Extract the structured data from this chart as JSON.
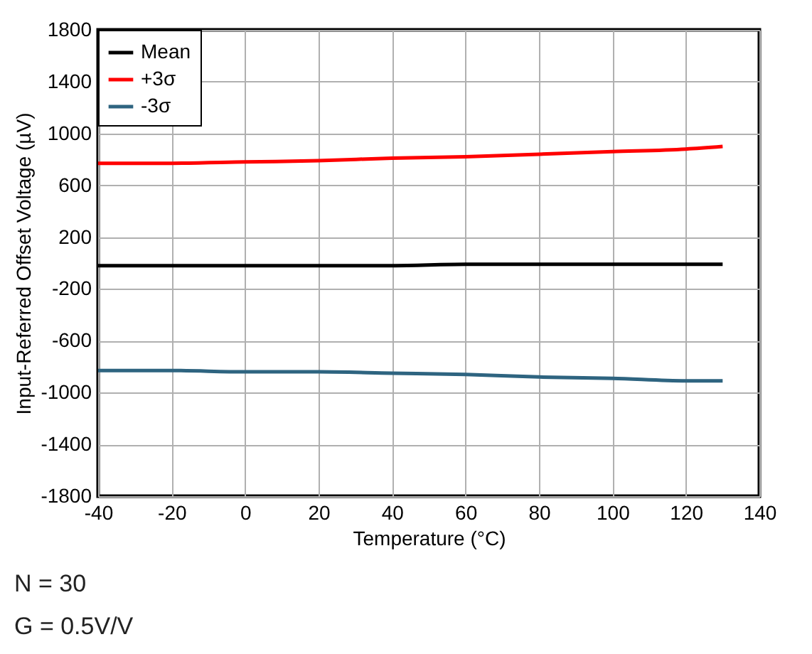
{
  "chart_data": {
    "type": "line",
    "xlabel": "Temperature (°C)",
    "ylabel": "Input-Referred Offset Voltage (µV)",
    "x": [
      -40,
      -20,
      0,
      20,
      40,
      60,
      80,
      100,
      120,
      130
    ],
    "series": [
      {
        "name": "Mean",
        "color": "#000000",
        "values": [
          -20,
          -20,
          -20,
          -20,
          -20,
          -10,
          -10,
          -10,
          -10,
          -10
        ]
      },
      {
        "name": "+3σ",
        "color": "#ff0000",
        "values": [
          770,
          770,
          780,
          790,
          810,
          820,
          840,
          860,
          880,
          900
        ]
      },
      {
        "name": "-3σ",
        "color": "#2e6480",
        "values": [
          -830,
          -830,
          -840,
          -840,
          -850,
          -860,
          -880,
          -890,
          -910,
          -910
        ]
      }
    ],
    "xlim": [
      -40,
      140
    ],
    "xticks": [
      -40,
      -20,
      0,
      20,
      40,
      60,
      80,
      100,
      120,
      140
    ],
    "ylim": [
      -1800,
      1800
    ],
    "yticks": [
      -1800,
      -1400,
      -1000,
      -600,
      -200,
      200,
      600,
      1000,
      1400,
      1800
    ],
    "grid": true,
    "legend": "top left",
    "line_style": "solid",
    "marker": "none",
    "annotations": [
      "N = 30",
      "G = 0.5V/V"
    ]
  }
}
